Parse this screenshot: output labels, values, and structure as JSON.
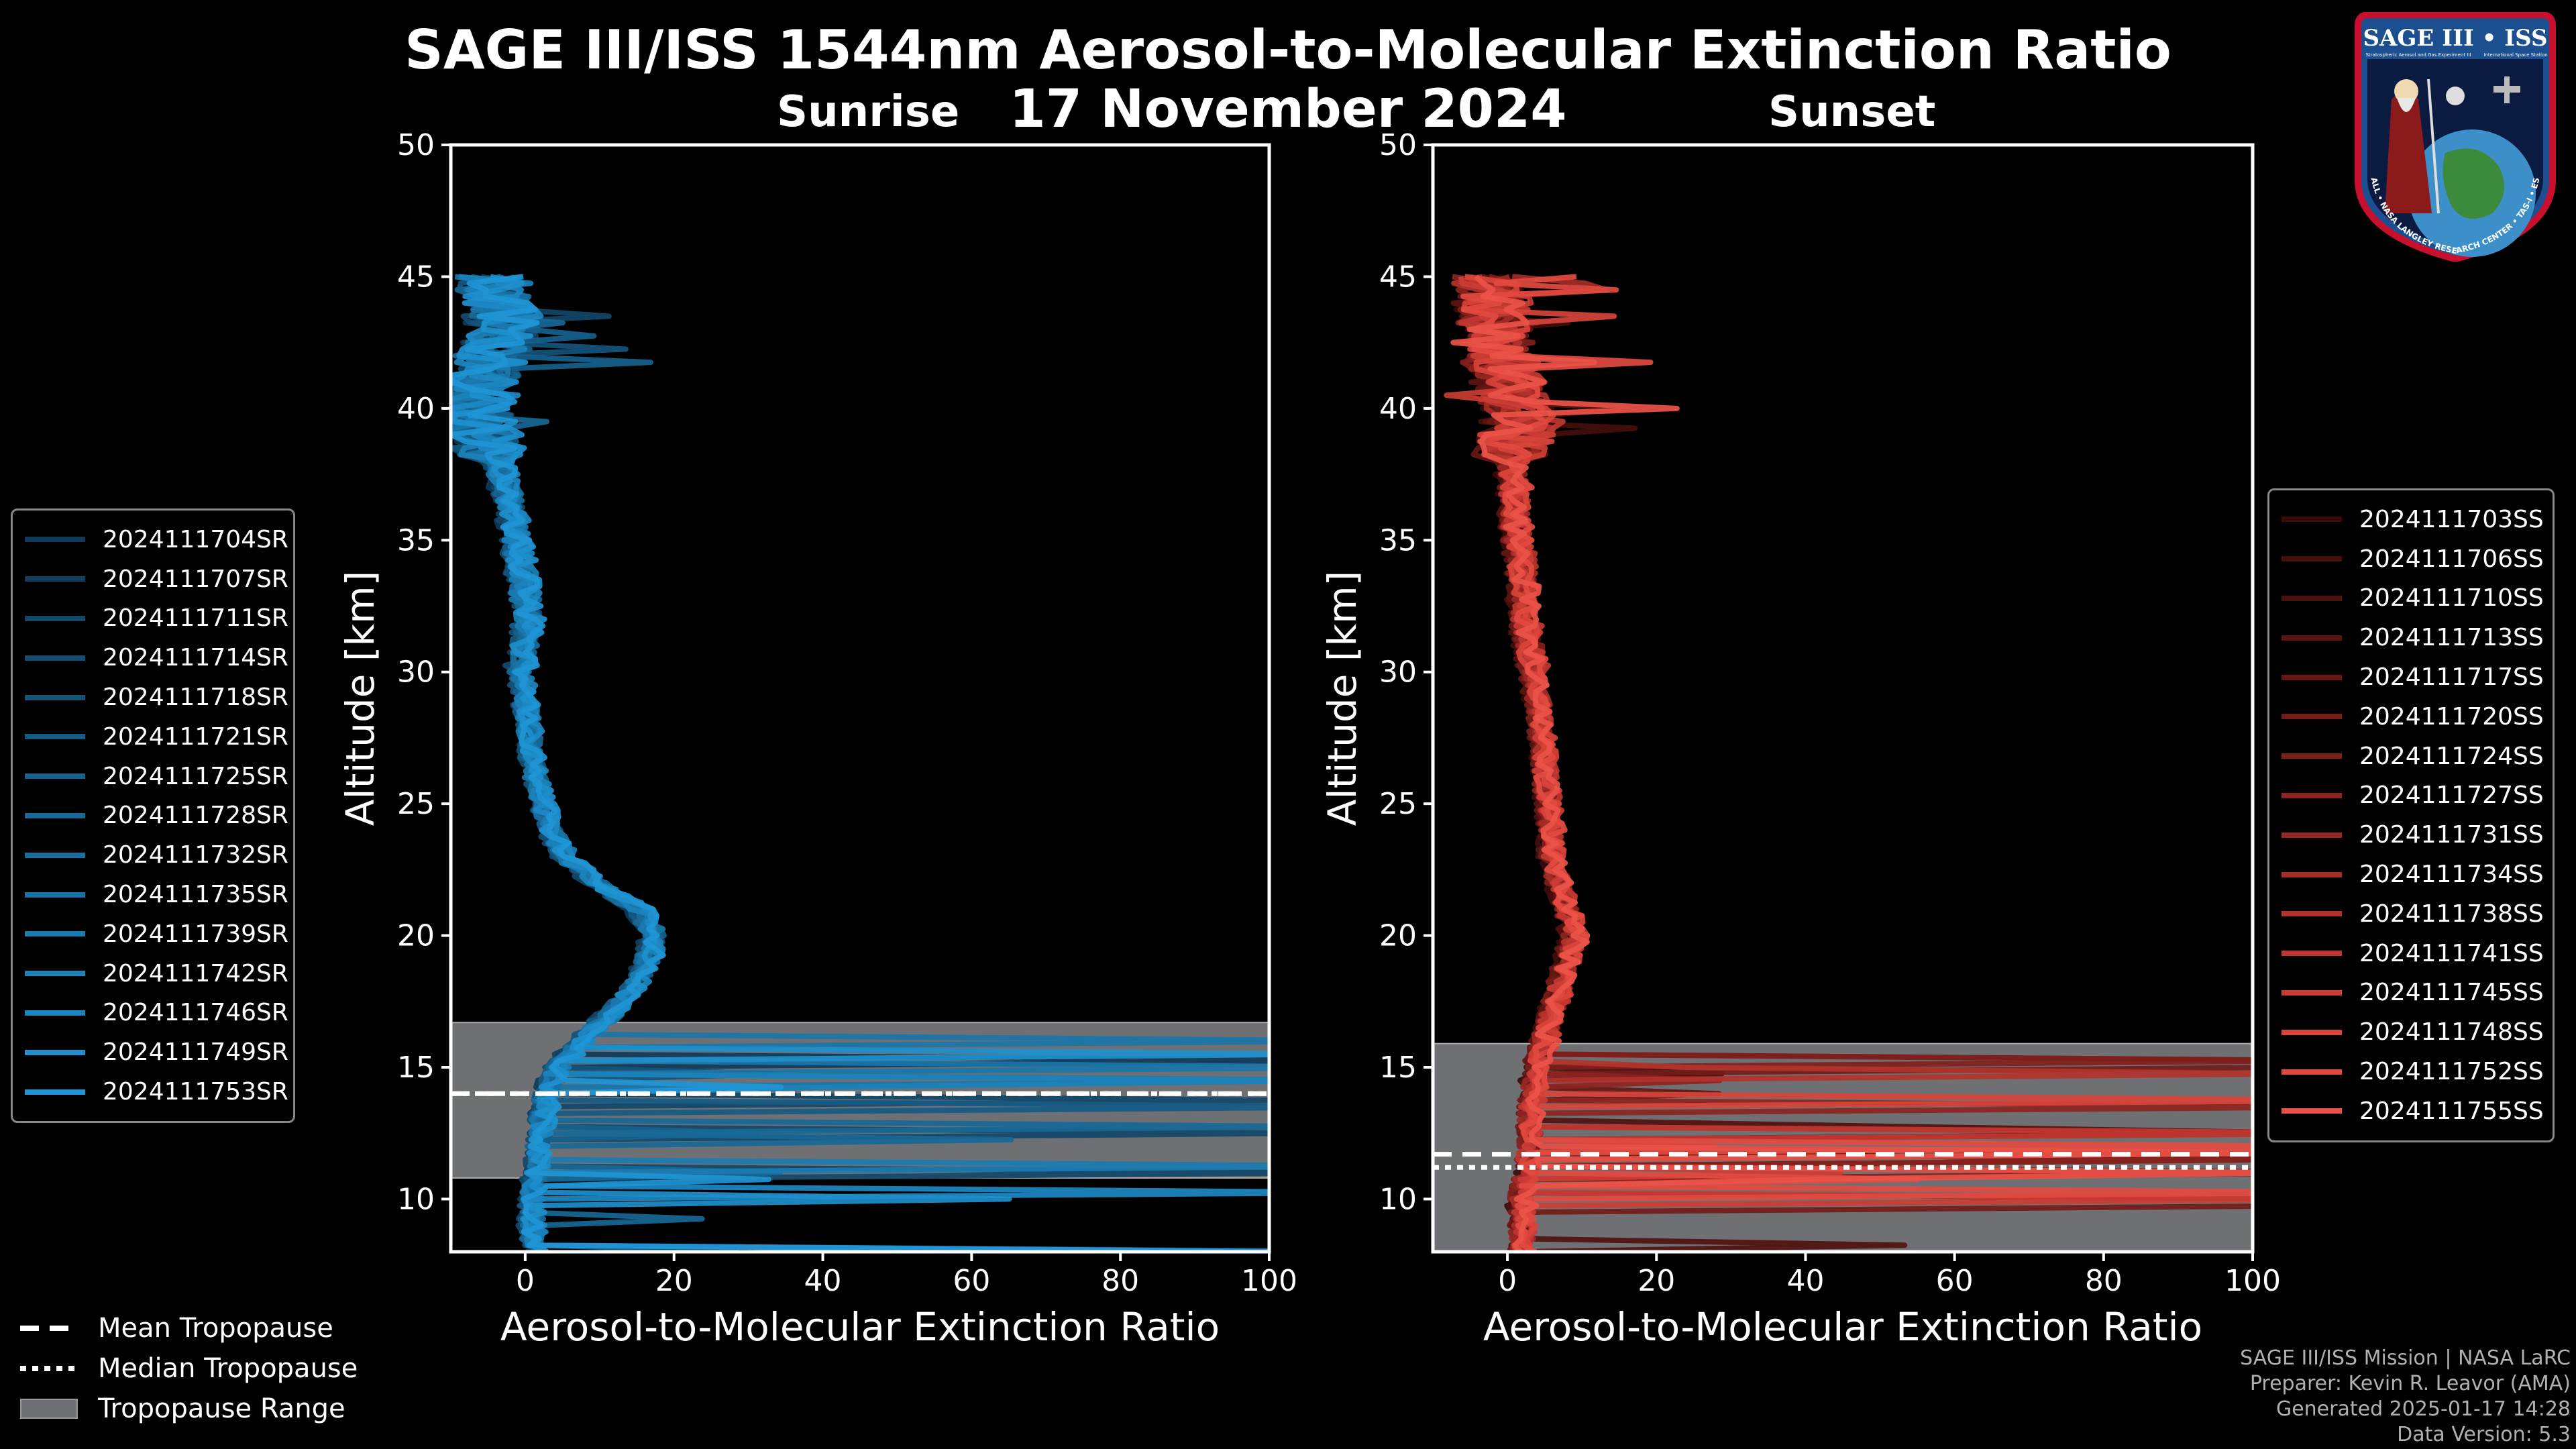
{
  "header": {
    "title": "SAGE III/ISS 1544nm Aerosol-to-Molecular Extinction Ratio",
    "date": "17 November 2024"
  },
  "badge": {
    "text": "SAGE III • ISS",
    "sub": "Stratospheric Aerosol and Gas Experiment III",
    "sub2": "International Space Station",
    "ring": "BALL • NASA LANGLEY RESEARCH CENTER • TAS-I • ESA"
  },
  "colors": {
    "sunrise": "#1f8fd4",
    "sunset": "#e8564a",
    "tropo_range": "#6f7074"
  },
  "chart_data": [
    {
      "type": "line",
      "title": "Sunrise",
      "xlabel": "Aerosol-to-Molecular Extinction Ratio",
      "ylabel": "Altitude [km]",
      "xlim": [
        -10,
        100
      ],
      "ylim": [
        8,
        50
      ],
      "xticks": [
        0,
        20,
        40,
        60,
        80,
        100
      ],
      "yticks": [
        10,
        15,
        20,
        25,
        30,
        35,
        40,
        45,
        50
      ],
      "tropopause": {
        "mean": 14.0,
        "median": 14.0,
        "range": [
          10.8,
          16.7
        ]
      },
      "base_profile": {
        "alt": [
          8,
          9,
          10,
          11,
          12,
          13,
          14,
          15,
          16,
          17,
          18,
          19,
          20,
          21,
          22,
          23,
          24,
          25,
          26,
          27,
          28,
          29,
          30,
          31,
          32,
          33,
          34,
          35,
          36,
          37,
          38,
          39,
          40,
          41,
          42,
          43,
          44,
          45
        ],
        "ratio": [
          2,
          1.5,
          1.5,
          2,
          2.5,
          3,
          3.5,
          5,
          8,
          12,
          15,
          17,
          18,
          16,
          10,
          6,
          4,
          3,
          2,
          1.5,
          1,
          0.5,
          0,
          0.5,
          1,
          0.5,
          0,
          -0.5,
          -1,
          -2,
          -3,
          -5,
          -6,
          -5,
          -4,
          -2,
          -3,
          -4
        ]
      },
      "series": [
        {
          "name": "2024111704SR",
          "color": "#0f3a58"
        },
        {
          "name": "2024111707SR",
          "color": "#11405f"
        },
        {
          "name": "2024111711SR",
          "color": "#124768"
        },
        {
          "name": "2024111714SR",
          "color": "#134d71"
        },
        {
          "name": "2024111718SR",
          "color": "#14547b"
        },
        {
          "name": "2024111721SR",
          "color": "#155a84"
        },
        {
          "name": "2024111725SR",
          "color": "#16618d"
        },
        {
          "name": "2024111728SR",
          "color": "#176896"
        },
        {
          "name": "2024111732SR",
          "color": "#186e9f"
        },
        {
          "name": "2024111735SR",
          "color": "#1975a8"
        },
        {
          "name": "2024111739SR",
          "color": "#1a7bb1"
        },
        {
          "name": "2024111742SR",
          "color": "#1b82ba"
        },
        {
          "name": "2024111746SR",
          "color": "#1c88c3"
        },
        {
          "name": "2024111749SR",
          "color": "#1d8fcc"
        },
        {
          "name": "2024111753SR",
          "color": "#1f95d5"
        }
      ]
    },
    {
      "type": "line",
      "title": "Sunset",
      "xlabel": "Aerosol-to-Molecular Extinction Ratio",
      "ylabel": "Altitude [km]",
      "xlim": [
        -10,
        100
      ],
      "ylim": [
        8,
        50
      ],
      "xticks": [
        0,
        20,
        40,
        60,
        80,
        100
      ],
      "yticks": [
        10,
        15,
        20,
        25,
        30,
        35,
        40,
        45,
        50
      ],
      "tropopause": {
        "mean": 11.7,
        "median": 11.2,
        "range": [
          8.0,
          15.9
        ]
      },
      "base_profile": {
        "alt": [
          8,
          9,
          10,
          11,
          12,
          13,
          14,
          15,
          16,
          17,
          18,
          19,
          20,
          21,
          22,
          23,
          24,
          25,
          26,
          27,
          28,
          29,
          30,
          31,
          32,
          33,
          34,
          35,
          36,
          37,
          38,
          39,
          40,
          41,
          42,
          43,
          44,
          45
        ],
        "ratio": [
          1,
          1,
          1,
          1.5,
          2,
          2,
          2.5,
          3,
          4,
          5,
          6,
          7,
          8,
          7,
          6,
          5,
          5,
          4.5,
          4,
          4,
          3.5,
          3,
          2.5,
          2,
          1.5,
          1,
          1,
          0.5,
          0,
          0,
          -0.5,
          0,
          0.5,
          -1,
          -2,
          -2.5,
          -3,
          -4
        ]
      },
      "series": [
        {
          "name": "2024111703SS",
          "color": "#3a0b09"
        },
        {
          "name": "2024111706SS",
          "color": "#440e0b"
        },
        {
          "name": "2024111710SS",
          "color": "#4f110e"
        },
        {
          "name": "2024111713SS",
          "color": "#5b1511"
        },
        {
          "name": "2024111717SS",
          "color": "#671815"
        },
        {
          "name": "2024111720SS",
          "color": "#731c18"
        },
        {
          "name": "2024111724SS",
          "color": "#80201b"
        },
        {
          "name": "2024111727SS",
          "color": "#8c241f"
        },
        {
          "name": "2024111731SS",
          "color": "#992823"
        },
        {
          "name": "2024111734SS",
          "color": "#a52d27"
        },
        {
          "name": "2024111738SS",
          "color": "#b2322b"
        },
        {
          "name": "2024111741SS",
          "color": "#bf3730"
        },
        {
          "name": "2024111745SS",
          "color": "#cb3d35"
        },
        {
          "name": "2024111748SS",
          "color": "#d8433a"
        },
        {
          "name": "2024111752SS",
          "color": "#e24a40"
        },
        {
          "name": "2024111755SS",
          "color": "#ea5248"
        }
      ]
    }
  ],
  "bottom_legend": {
    "mean": "Mean Tropopause",
    "median": "Median Tropopause",
    "range": "Tropopause Range"
  },
  "credits": {
    "line1": "SAGE III/ISS Mission | NASA LaRC",
    "line2": "Preparer: Kevin R. Leavor (AMA)",
    "line3": "Generated 2025-01-17 14:28",
    "line4": "Data Version: 5.3"
  }
}
